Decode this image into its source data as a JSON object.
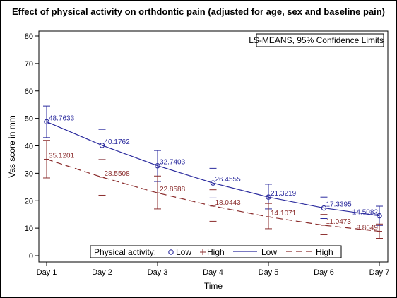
{
  "title": "Effect of physical activity on orthdontic pain (adjusted for age, sex and baseline pain)",
  "chart_data": {
    "type": "line",
    "title": "Effect of physical activity on orthdontic pain (adjusted for age, sex and baseline pain)",
    "annotation": "LS-MEANS, 95% Confidence Limits",
    "xlabel": "Time",
    "ylabel": "Vas score in mm",
    "categories": [
      "Day 1",
      "Day 2",
      "Day 3",
      "Day 4",
      "Day 5",
      "Day 6",
      "Day 7"
    ],
    "ylim": [
      0,
      80
    ],
    "yticks": [
      0,
      10,
      20,
      30,
      40,
      50,
      60,
      70,
      80
    ],
    "grid": false,
    "legend_position": "bottom",
    "legend_title": "Physical activity:",
    "legend_items": [
      "Low",
      "High",
      "Low",
      "High"
    ],
    "series": [
      {
        "name": "Low",
        "color": "#2b2b9e",
        "marker": "circle",
        "line_style": "solid",
        "values": [
          48.7633,
          40.1762,
          32.7403,
          26.4555,
          21.3219,
          17.3395,
          14.5082
        ],
        "labels": [
          "48.7633",
          "40.1762",
          "32.7403",
          "26.4555",
          "21.3219",
          "17.3395",
          "14.5082"
        ],
        "lower": [
          43,
          35,
          27,
          21,
          17,
          13.5,
          11
        ],
        "upper": [
          54.5,
          46,
          38.3,
          31.8,
          26,
          21.3,
          18
        ]
      },
      {
        "name": "High",
        "color": "#8b2d2d",
        "marker": "plus",
        "line_style": "dashed",
        "values": [
          35.1201,
          28.5508,
          22.8588,
          18.0443,
          14.1071,
          11.0473,
          8.8649
        ],
        "labels": [
          "35.1201",
          "28.5508",
          "22.8588",
          "18.0443",
          "14.1071",
          "11.0473",
          "8.8649"
        ],
        "lower": [
          28.3,
          22,
          17,
          12.5,
          9.8,
          7.6,
          6.3
        ],
        "upper": [
          42,
          35,
          29,
          24,
          19,
          15,
          11.5
        ]
      }
    ]
  }
}
